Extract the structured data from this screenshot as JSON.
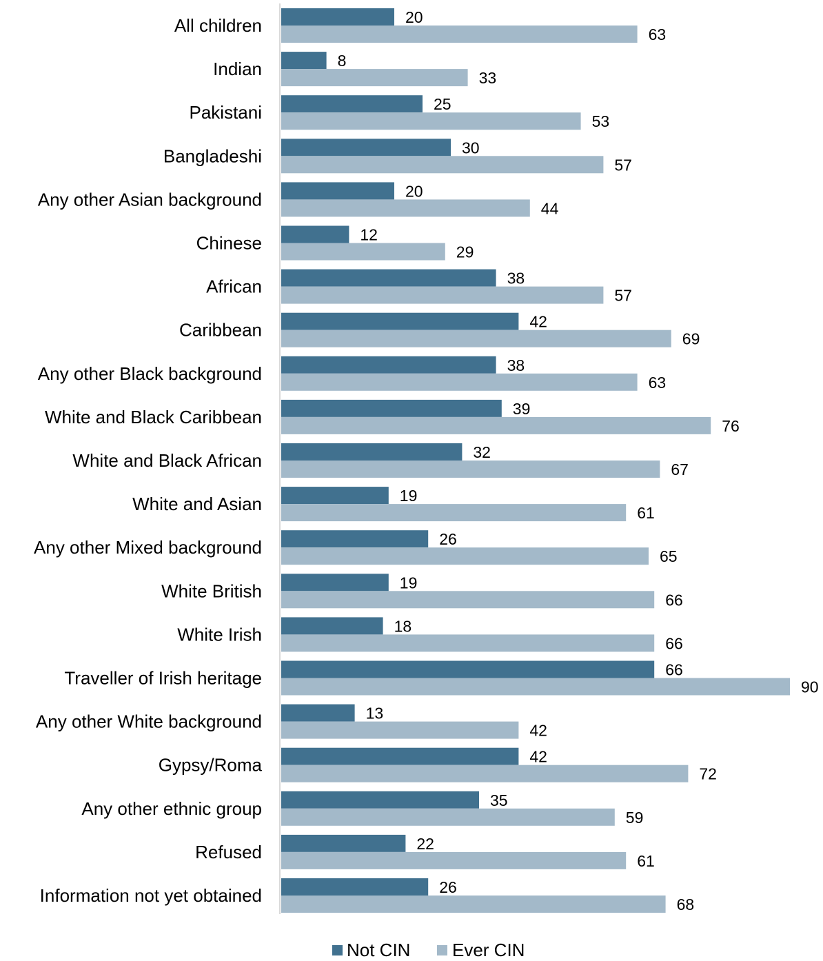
{
  "colors": {
    "not_cin": "#41718f",
    "ever_cin": "#a3b9c9",
    "axis": "#d9d9d9"
  },
  "chart_data": {
    "type": "bar",
    "orientation": "horizontal",
    "categories": [
      "All children",
      "Indian",
      "Pakistani",
      "Bangladeshi",
      "Any other Asian background",
      "Chinese",
      "African",
      "Caribbean",
      "Any other Black background",
      "White and Black Caribbean",
      "White and Black African",
      "White and Asian",
      "Any other Mixed background",
      "White British",
      "White Irish",
      "Traveller of Irish heritage",
      "Any other White background",
      "Gypsy/Roma",
      "Any other ethnic group",
      "Refused",
      "Information not yet obtained"
    ],
    "series": [
      {
        "name": "Not CIN",
        "values": [
          20,
          8,
          25,
          30,
          20,
          12,
          38,
          42,
          38,
          39,
          32,
          19,
          26,
          19,
          18,
          66,
          13,
          42,
          35,
          22,
          26
        ]
      },
      {
        "name": "Ever CIN",
        "values": [
          63,
          33,
          53,
          57,
          44,
          29,
          57,
          69,
          63,
          76,
          67,
          61,
          65,
          66,
          66,
          90,
          42,
          72,
          59,
          61,
          68
        ]
      }
    ],
    "xlim": [
      0,
      90
    ],
    "grid": false,
    "legend_position": "bottom"
  }
}
